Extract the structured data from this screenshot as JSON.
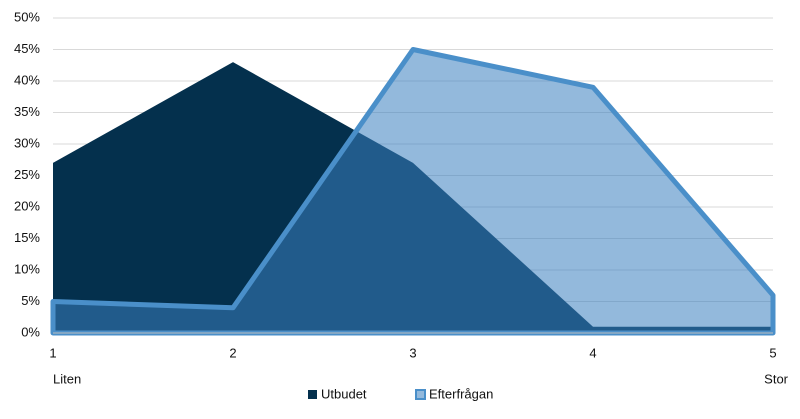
{
  "chart_data": {
    "type": "area",
    "categories": [
      "1",
      "2",
      "3",
      "4",
      "5"
    ],
    "x_start_label": "Liten",
    "x_end_label": "Stor",
    "series": [
      {
        "name": "Utbudet",
        "color": "#04304d",
        "opacity": 1,
        "values": [
          27,
          43,
          27,
          1,
          1
        ]
      },
      {
        "name": "Efterfrågan",
        "color": "#3a80c0",
        "opacity": 0.55,
        "stroke": "#4a8fc9",
        "values": [
          5,
          4,
          45,
          39,
          6
        ]
      }
    ],
    "ylim": [
      0,
      50
    ],
    "yticks": [
      {
        "value": 0,
        "label": "0%"
      },
      {
        "value": 5,
        "label": "5%"
      },
      {
        "value": 10,
        "label": "10%"
      },
      {
        "value": 15,
        "label": "15%"
      },
      {
        "value": 20,
        "label": "20%"
      },
      {
        "value": 25,
        "label": "25%"
      },
      {
        "value": 30,
        "label": "30%"
      },
      {
        "value": 35,
        "label": "35%"
      },
      {
        "value": 40,
        "label": "40%"
      },
      {
        "value": 45,
        "label": "45%"
      },
      {
        "value": 50,
        "label": "50%"
      }
    ],
    "grid": true,
    "legend": "bottom"
  }
}
